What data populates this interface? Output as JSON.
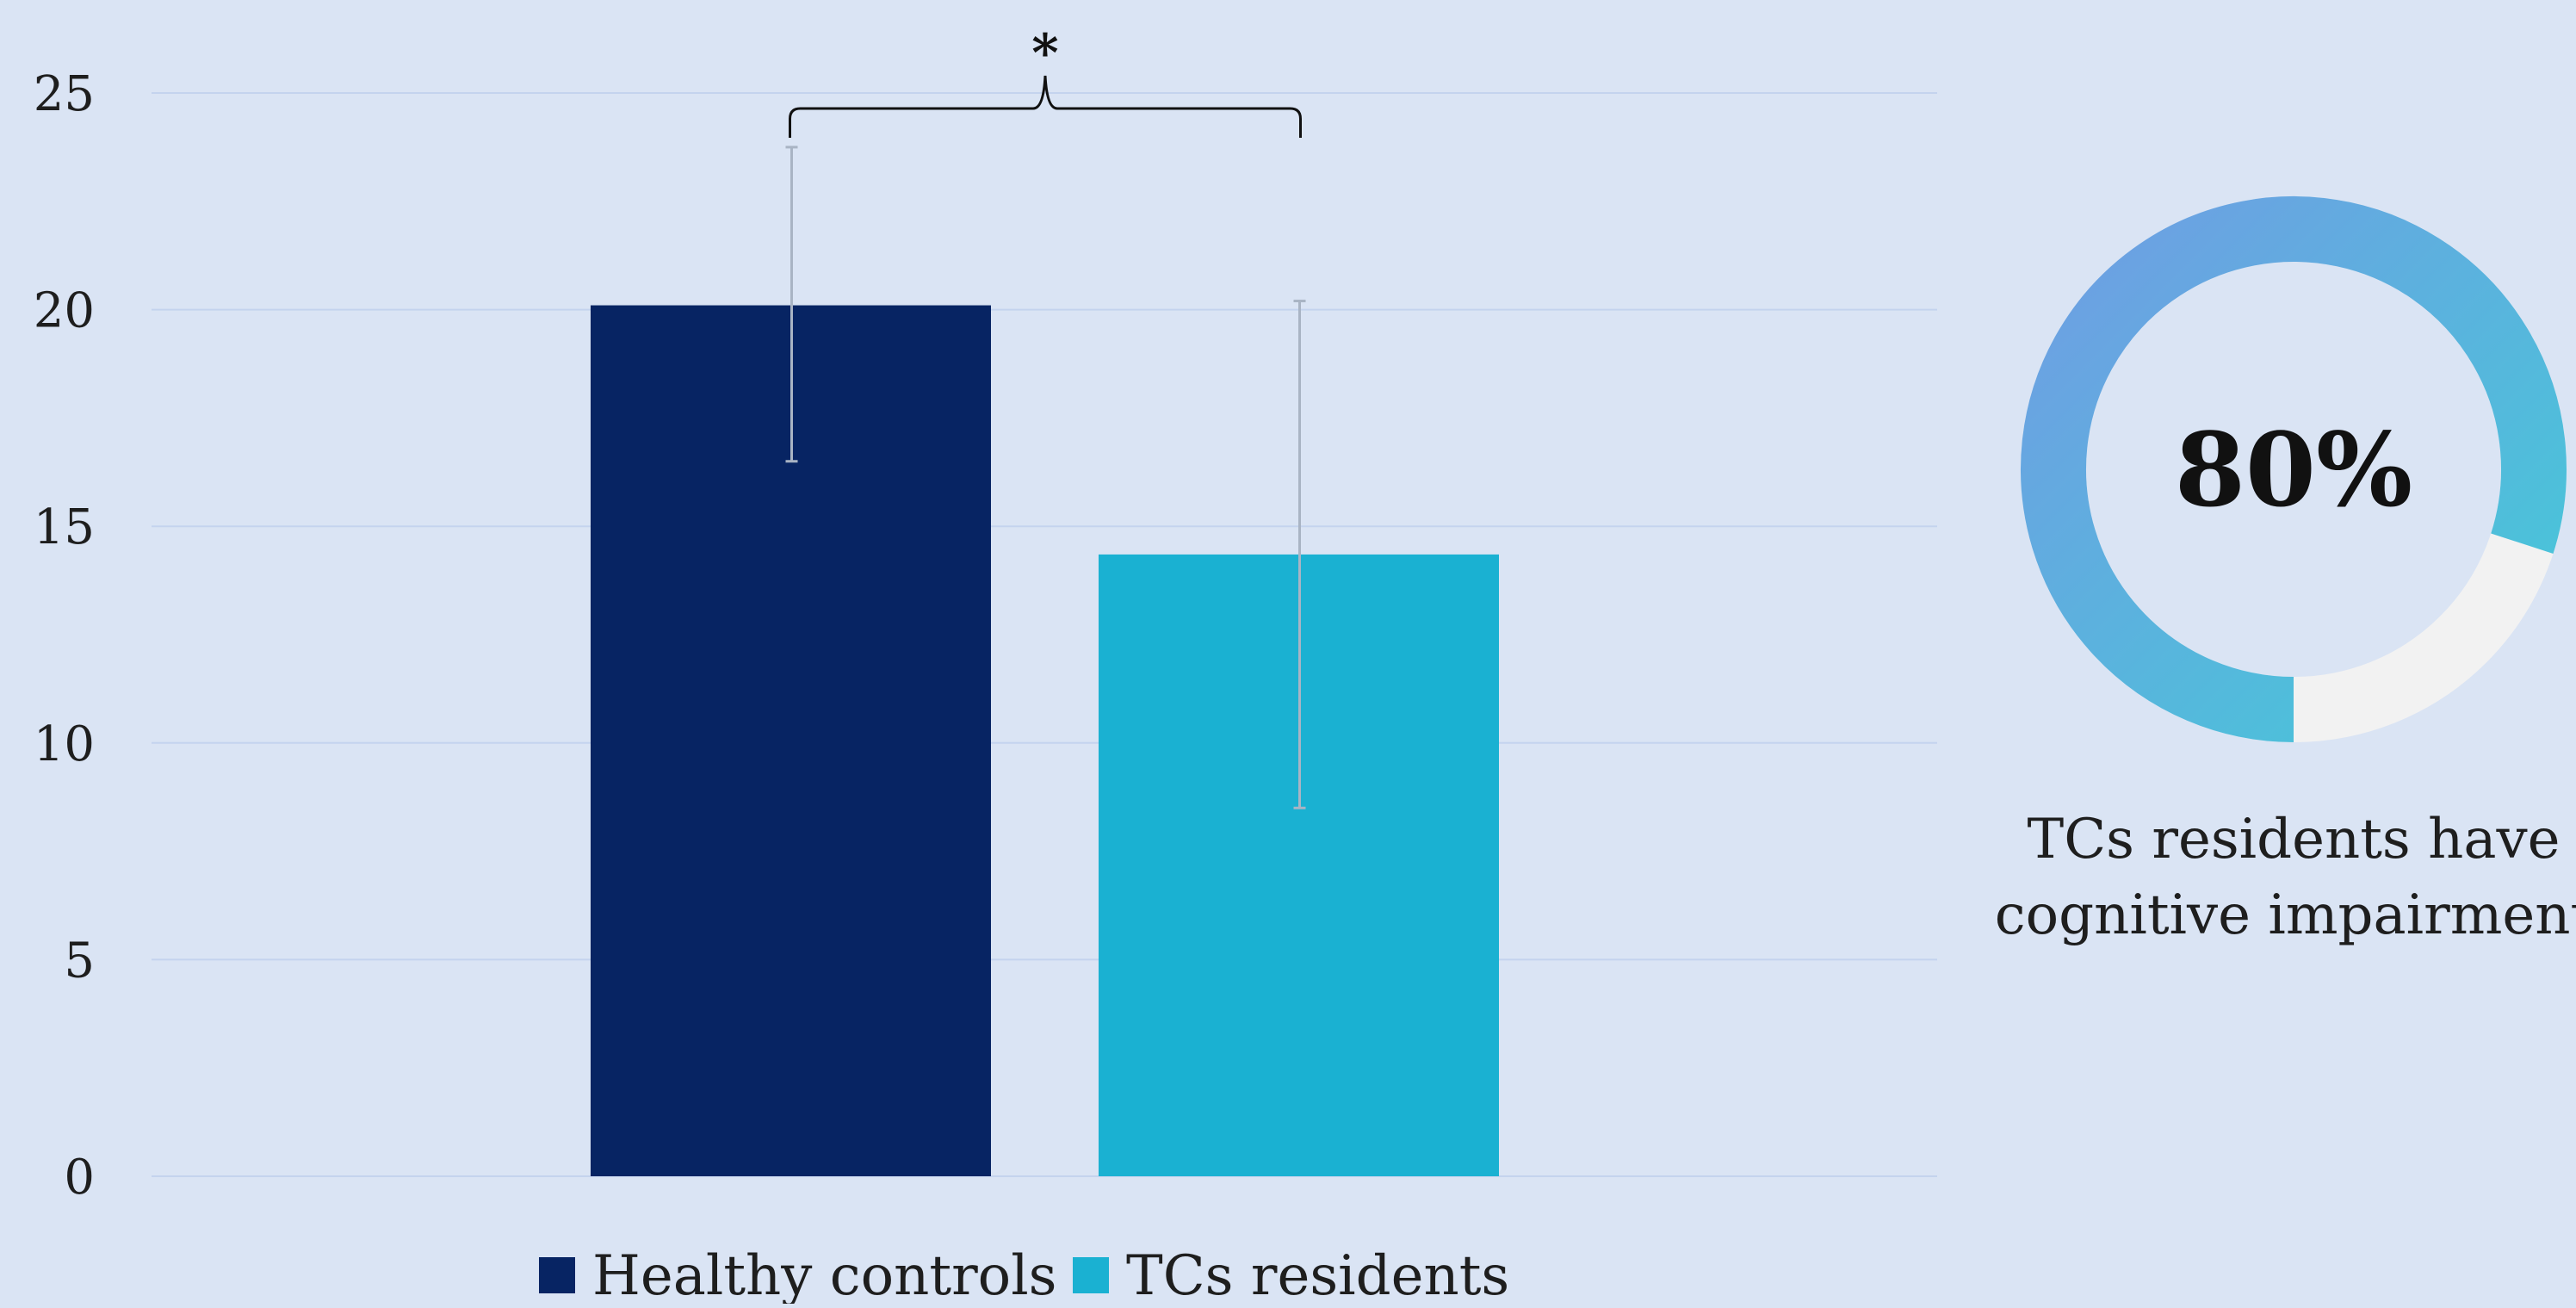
{
  "chart_data": {
    "type": "bar",
    "categories": [
      "Healthy controls",
      "TCs residents"
    ],
    "values": [
      20.1,
      14.35
    ],
    "error_bars": [
      {
        "low": 16.5,
        "high": 23.75
      },
      {
        "low": 8.5,
        "high": 20.2
      }
    ],
    "colors": [
      "#072463",
      "#1ab1d2"
    ],
    "ylim": [
      0,
      25
    ],
    "yticks": [
      "0",
      "5",
      "10",
      "15",
      "20",
      "25"
    ],
    "grid": true,
    "legend": {
      "position": "bottom",
      "entries": [
        "Healthy controls",
        "TCs residents"
      ]
    },
    "annotation": "*"
  },
  "donut": {
    "percent": 80,
    "value_label": "80%",
    "caption_lines": [
      "TCs residents have",
      "cognitive impairment"
    ],
    "track_color": "#f2f2f2",
    "gradient_colors": [
      "#6f9ee3",
      "#45c8d8"
    ]
  }
}
